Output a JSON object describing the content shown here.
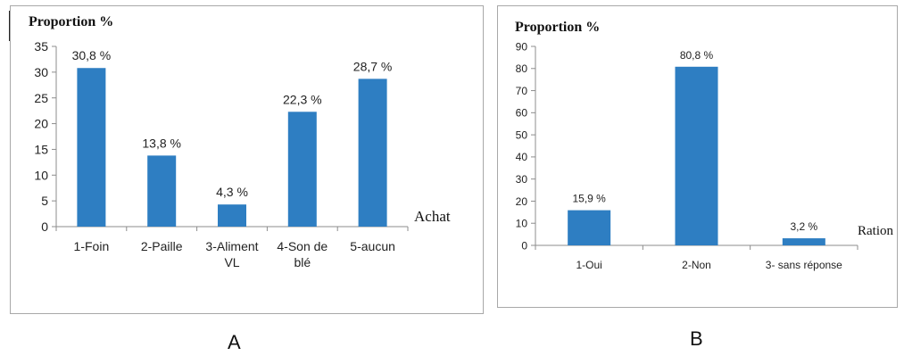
{
  "chart_data": [
    {
      "type": "bar",
      "ylabel": "Proportion %",
      "xlabel": "Achat",
      "categories": [
        [
          "1-Foin"
        ],
        [
          "2-Paille"
        ],
        [
          "3-Aliment",
          "VL"
        ],
        [
          "4-Son de",
          "blé"
        ],
        [
          "5-aucun"
        ]
      ],
      "values": [
        30.8,
        13.8,
        4.3,
        22.3,
        28.7
      ],
      "value_labels": [
        "30,8  %",
        "13,8  %",
        "4,3  %",
        "22,3  %",
        "28,7  %"
      ],
      "yticks": [
        0,
        5,
        10,
        15,
        20,
        25,
        30,
        35
      ],
      "ylim": [
        0,
        35
      ],
      "grid": false,
      "bar_color": "#2e7ec2"
    },
    {
      "type": "bar",
      "ylabel": "Proportion %",
      "xlabel": "Ration",
      "categories": [
        [
          "1-Oui"
        ],
        [
          "2-Non"
        ],
        [
          "3- sans réponse"
        ]
      ],
      "values": [
        15.9,
        80.8,
        3.2
      ],
      "value_labels": [
        "15,9  %",
        "80,8  %",
        "3,2  %"
      ],
      "yticks": [
        0,
        10,
        20,
        30,
        40,
        50,
        60,
        70,
        80,
        90
      ],
      "ylim": [
        0,
        90
      ],
      "grid": false,
      "bar_color": "#2e7ec2"
    }
  ],
  "captions": {
    "a": "A",
    "b": "B"
  }
}
